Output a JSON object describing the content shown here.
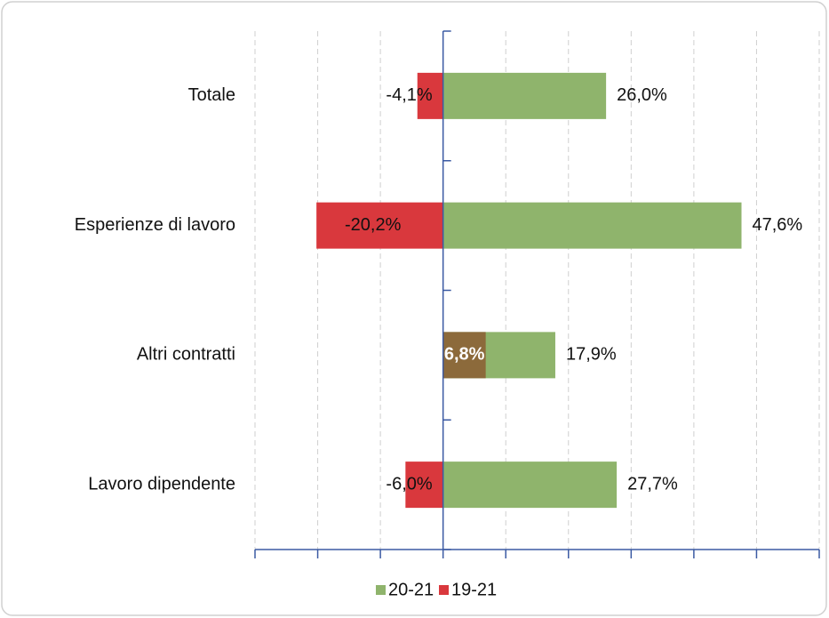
{
  "chart_data": {
    "type": "hbar",
    "categories": [
      "Totale",
      "Esperienze di lavoro",
      "Altri contratti",
      "Lavoro dipendente"
    ],
    "series": [
      {
        "name": "20-21",
        "color": "#8fb46c",
        "values": [
          26.0,
          47.6,
          17.9,
          27.7
        ],
        "value_labels": [
          "26,0%",
          "47,6%",
          "17,9%",
          "27,7%"
        ]
      },
      {
        "name": "19-21",
        "color": "#d9383d",
        "colors": [
          "#d9383d",
          "#d9383d",
          "#8c6a3b",
          "#d9383d"
        ],
        "values": [
          -4.1,
          -20.2,
          6.8,
          -6.0
        ],
        "value_labels": [
          "-4,1%",
          "-20,2%",
          "6,8%",
          "-6,0%"
        ]
      }
    ],
    "xlim": [
      -30,
      60
    ],
    "xticks": [
      -30,
      -20,
      -10,
      0,
      10,
      20,
      30,
      40,
      50,
      60
    ],
    "grid": true,
    "legend": "bottom"
  }
}
